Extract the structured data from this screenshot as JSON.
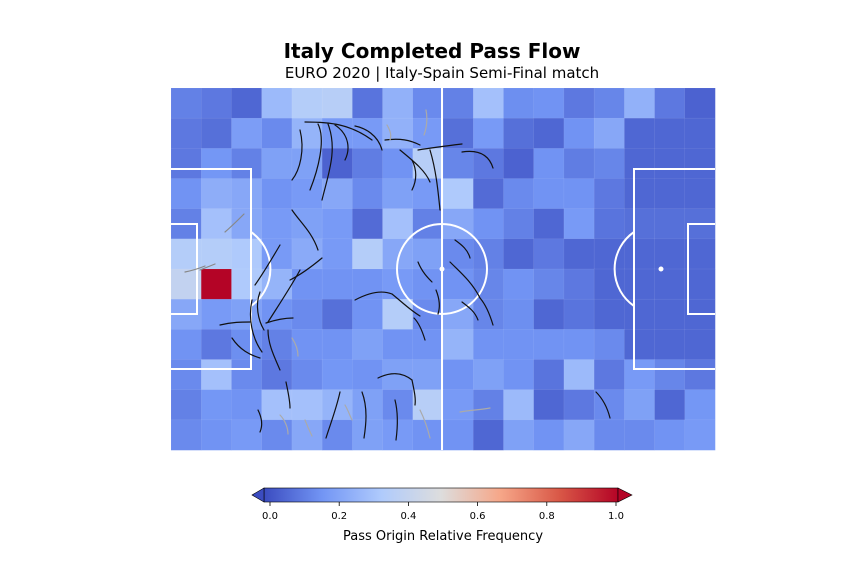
{
  "title": "Italy Completed Pass Flow",
  "subtitle": "EURO 2020 | Italy-Spain Semi-Final match",
  "colorbar": {
    "label": "Pass Origin Relative Frequency",
    "ticks": [
      "0.0",
      "0.2",
      "0.4",
      "0.6",
      "0.8",
      "1.0"
    ],
    "colormap": [
      "#3b4cc0",
      "#7396f5",
      "#b0cbfc",
      "#dddddd",
      "#f6a789",
      "#d95847",
      "#b40426"
    ]
  },
  "chart_data": {
    "type": "heatmap",
    "title": "Italy Completed Pass Flow",
    "subtitle": "EURO 2020 | Italy-Spain Semi-Final match",
    "colorbar_label": "Pass Origin Relative Frequency",
    "value_range": [
      0,
      1
    ],
    "grid_cols": 18,
    "grid_rows": 12,
    "values": [
      [
        0.12,
        0.1,
        0.06,
        0.28,
        0.35,
        0.36,
        0.09,
        0.25,
        0.14,
        0.12,
        0.3,
        0.15,
        0.16,
        0.1,
        0.13,
        0.25,
        0.1,
        0.05
      ],
      [
        0.1,
        0.08,
        0.19,
        0.14,
        0.26,
        0.18,
        0.18,
        0.25,
        0.18,
        0.08,
        0.18,
        0.08,
        0.06,
        0.16,
        0.22,
        0.06,
        0.06,
        0.06
      ],
      [
        0.1,
        0.17,
        0.12,
        0.2,
        0.2,
        0.05,
        0.11,
        0.16,
        0.36,
        0.13,
        0.1,
        0.05,
        0.16,
        0.11,
        0.13,
        0.06,
        0.06,
        0.06
      ],
      [
        0.16,
        0.24,
        0.22,
        0.16,
        0.18,
        0.22,
        0.14,
        0.2,
        0.18,
        0.33,
        0.07,
        0.14,
        0.16,
        0.16,
        0.1,
        0.06,
        0.06,
        0.06
      ],
      [
        0.12,
        0.3,
        0.22,
        0.18,
        0.2,
        0.18,
        0.07,
        0.3,
        0.12,
        0.22,
        0.16,
        0.12,
        0.06,
        0.18,
        0.09,
        0.08,
        0.08,
        0.08
      ],
      [
        0.35,
        0.35,
        0.33,
        0.18,
        0.23,
        0.18,
        0.35,
        0.22,
        0.2,
        0.14,
        0.12,
        0.06,
        0.1,
        0.06,
        0.06,
        0.06,
        0.06,
        0.06
      ],
      [
        0.4,
        1.0,
        0.33,
        0.26,
        0.16,
        0.16,
        0.16,
        0.18,
        0.16,
        0.16,
        0.13,
        0.16,
        0.13,
        0.1,
        0.06,
        0.06,
        0.06,
        0.06
      ],
      [
        0.22,
        0.18,
        0.2,
        0.16,
        0.14,
        0.08,
        0.16,
        0.35,
        0.14,
        0.22,
        0.13,
        0.15,
        0.06,
        0.09,
        0.06,
        0.06,
        0.06,
        0.06
      ],
      [
        0.16,
        0.1,
        0.15,
        0.12,
        0.16,
        0.16,
        0.2,
        0.16,
        0.16,
        0.26,
        0.16,
        0.16,
        0.16,
        0.16,
        0.14,
        0.06,
        0.06,
        0.06
      ],
      [
        0.14,
        0.3,
        0.14,
        0.1,
        0.14,
        0.17,
        0.16,
        0.2,
        0.2,
        0.16,
        0.2,
        0.16,
        0.09,
        0.28,
        0.1,
        0.18,
        0.13,
        0.1
      ],
      [
        0.12,
        0.17,
        0.16,
        0.3,
        0.3,
        0.26,
        0.2,
        0.14,
        0.36,
        0.18,
        0.12,
        0.28,
        0.06,
        0.1,
        0.14,
        0.2,
        0.06,
        0.17
      ],
      [
        0.14,
        0.16,
        0.18,
        0.14,
        0.22,
        0.14,
        0.2,
        0.18,
        0.16,
        0.16,
        0.06,
        0.2,
        0.16,
        0.22,
        0.14,
        0.14,
        0.16,
        0.18
      ]
    ]
  }
}
